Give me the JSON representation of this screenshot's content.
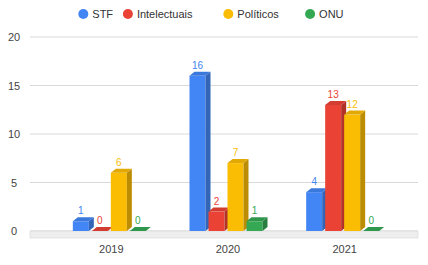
{
  "chart_data": {
    "type": "bar",
    "categories": [
      "2019",
      "2020",
      "2021"
    ],
    "series": [
      {
        "name": "STF",
        "color": "#4285f4",
        "values": [
          1,
          16,
          4
        ]
      },
      {
        "name": "Intelectuais",
        "color": "#ea4335",
        "values": [
          0,
          2,
          13
        ]
      },
      {
        "name": "Políticos",
        "color": "#fbbc04",
        "values": [
          6,
          7,
          12
        ]
      },
      {
        "name": "ONU",
        "color": "#34a853",
        "values": [
          0,
          1,
          0
        ]
      }
    ],
    "ylim": [
      0,
      20
    ],
    "yticks": [
      0,
      5,
      10,
      15,
      20
    ],
    "grid": true,
    "legend": "top",
    "data_labels": true
  }
}
